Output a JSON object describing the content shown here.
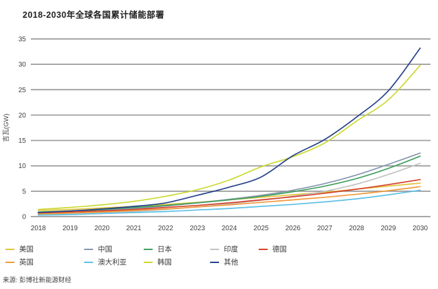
{
  "title": "2018-2030年全球各国累计储能部署",
  "source": "来源: 彭博社新能源财经",
  "chart_data": {
    "type": "line",
    "title": "2018-2030年全球各国累计储能部署",
    "xlabel": "",
    "ylabel": "吉瓦(GW)",
    "ylim": [
      0,
      35
    ],
    "ytick_step": 5,
    "yticks": [
      0,
      5,
      10,
      15,
      20,
      25,
      30,
      35
    ],
    "grid": "horizontal",
    "legend_position": "bottom",
    "x": [
      2018,
      2019,
      2020,
      2021,
      2022,
      2023,
      2024,
      2025,
      2026,
      2027,
      2028,
      2029,
      2030
    ],
    "series": [
      {
        "name": "美国",
        "color": "#e0c33c",
        "values": [
          1.2,
          1.4,
          1.7,
          2.0,
          2.4,
          2.8,
          3.3,
          3.8,
          4.3,
          4.8,
          5.4,
          6.0,
          6.6
        ]
      },
      {
        "name": "中国",
        "color": "#8696ae",
        "values": [
          0.6,
          0.9,
          1.2,
          1.6,
          2.1,
          2.7,
          3.4,
          4.2,
          5.2,
          6.5,
          8.2,
          10.3,
          12.5
        ]
      },
      {
        "name": "日本",
        "color": "#41a05f",
        "values": [
          0.9,
          1.1,
          1.4,
          1.8,
          2.2,
          2.7,
          3.3,
          4.0,
          4.9,
          6.0,
          7.5,
          9.5,
          11.9
        ]
      },
      {
        "name": "印度",
        "color": "#c2c2c2",
        "values": [
          0.3,
          0.5,
          0.7,
          1.0,
          1.4,
          1.9,
          2.5,
          3.2,
          4.0,
          5.0,
          6.4,
          8.3,
          10.5
        ]
      },
      {
        "name": "德国",
        "color": "#d6402d",
        "values": [
          0.7,
          0.9,
          1.1,
          1.4,
          1.8,
          2.2,
          2.7,
          3.3,
          3.9,
          4.6,
          5.4,
          6.3,
          7.3
        ]
      },
      {
        "name": "英国",
        "color": "#f09a3c",
        "values": [
          0.5,
          0.7,
          0.9,
          1.2,
          1.5,
          1.9,
          2.3,
          2.8,
          3.3,
          3.8,
          4.4,
          5.1,
          5.9
        ]
      },
      {
        "name": "澳大利亚",
        "color": "#5cc0e4",
        "values": [
          0.3,
          0.4,
          0.6,
          0.8,
          1.0,
          1.3,
          1.6,
          2.0,
          2.4,
          2.9,
          3.5,
          4.3,
          5.2
        ]
      },
      {
        "name": "韩国",
        "color": "#cbd92f",
        "values": [
          1.4,
          1.8,
          2.3,
          3.0,
          4.0,
          5.3,
          7.2,
          9.8,
          11.8,
          14.5,
          18.8,
          23.0,
          29.8
        ]
      },
      {
        "name": "其他",
        "color": "#24418b",
        "values": [
          0.8,
          1.1,
          1.5,
          2.0,
          2.7,
          4.2,
          5.8,
          7.8,
          12.0,
          15.2,
          19.6,
          24.8,
          33.2
        ]
      }
    ],
    "legend_rows": [
      [
        "美国",
        "中国",
        "日本",
        "印度",
        "德国"
      ],
      [
        "英国",
        "澳大利亚",
        "韩国",
        "其他"
      ]
    ]
  },
  "style": {
    "grid_color": "#9a9a9a",
    "tick_color": "#404040",
    "title_color": "#1f1f1f"
  }
}
